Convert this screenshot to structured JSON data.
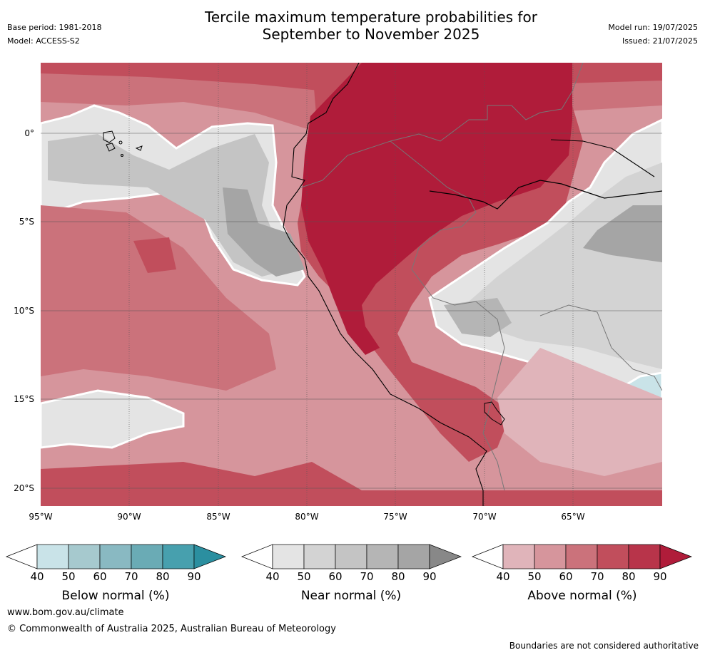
{
  "title_line1": "Tercile maximum temperature probabilities for",
  "title_line2": "September to November 2025",
  "meta_left": [
    "Base period: 1981-2018",
    "Model: ACCESS-S2"
  ],
  "meta_right": [
    "Model run: 19/07/2025",
    "Issued: 21/07/2025"
  ],
  "lat_labels": [
    "0°",
    "5°S",
    "10°S",
    "15°S",
    "20°S"
  ],
  "lon_labels": [
    "95°W",
    "90°W",
    "85°W",
    "80°W",
    "75°W",
    "70°W",
    "65°W"
  ],
  "colorbars": [
    {
      "label": "Below normal (%)",
      "ticks": [
        "40",
        "50",
        "60",
        "70",
        "80",
        "90"
      ],
      "colors": [
        "#ffffff",
        "#c9e3e8",
        "#a6c9ce",
        "#89b9c2",
        "#6aabb5",
        "#47a0ae",
        "#2b8fa0"
      ]
    },
    {
      "label": "Near normal (%)",
      "ticks": [
        "40",
        "50",
        "60",
        "70",
        "80",
        "90"
      ],
      "colors": [
        "#ffffff",
        "#e4e4e4",
        "#d3d3d3",
        "#c4c4c4",
        "#b5b5b5",
        "#a5a5a5",
        "#888888"
      ]
    },
    {
      "label": "Above normal (%)",
      "ticks": [
        "40",
        "50",
        "60",
        "70",
        "80",
        "90"
      ],
      "colors": [
        "#ffffff",
        "#e0b4ba",
        "#d6959c",
        "#cb727b",
        "#c14e5c",
        "#b8344a",
        "#b01c3a"
      ]
    }
  ],
  "footer_url": "www.bom.gov.au/climate",
  "footer_copyright": "© Commonwealth of Australia 2025, Australian Bureau of Meteorology",
  "disclaimer": "Boundaries are not considered authoritative"
}
